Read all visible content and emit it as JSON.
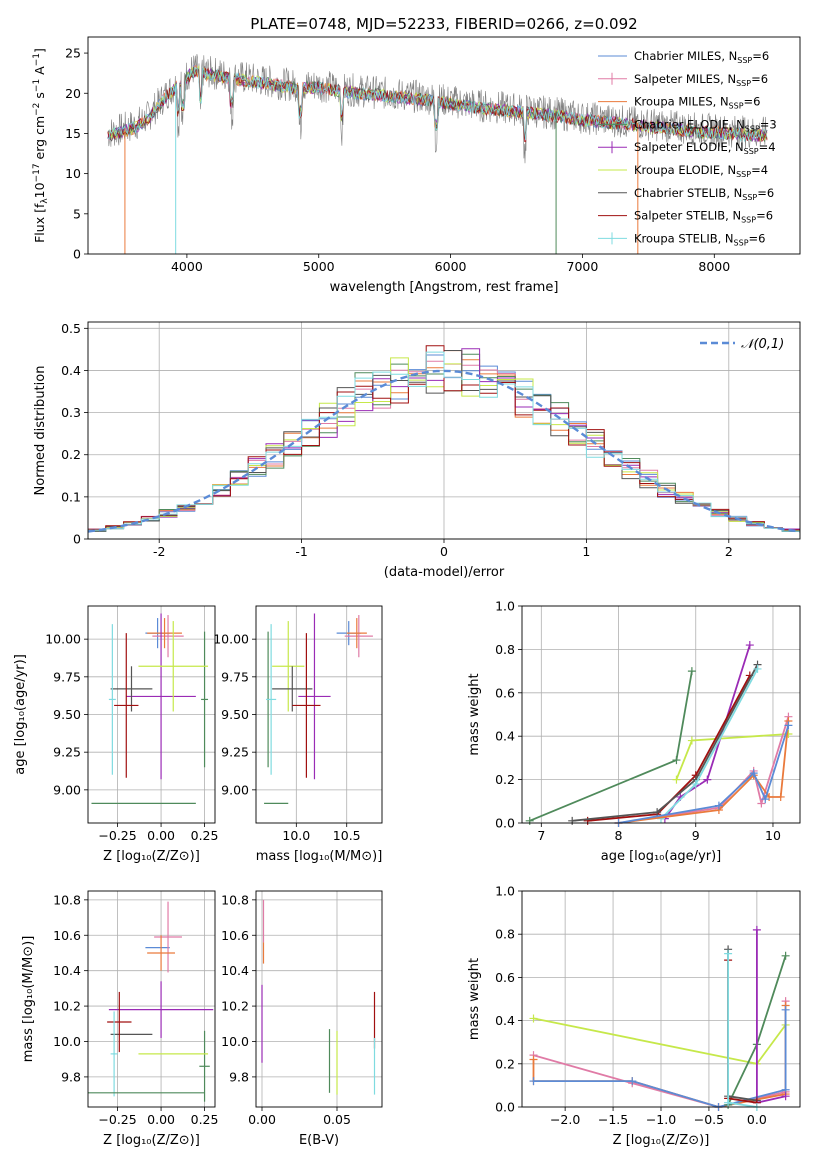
{
  "figure_title": "PLATE=0748, MJD=52233, FIBERID=0266, z=0.092",
  "series_colors": [
    "#5b8bd6",
    "#e07ba6",
    "#ea7a3c",
    "#4f8a5b",
    "#9a2bb5",
    "#c6e84a",
    "#555555",
    "#a01010",
    "#7fdbe0"
  ],
  "chart_data": [
    {
      "id": "spectrum",
      "type": "line",
      "xlabel": "wavelength [Angstrom, rest frame]",
      "ylabel": "Flux [f$_\\lambda$10$^{-17}$ erg cm$^{-2}$ s$^{-1}$ A$^{-1}$]",
      "xlim": [
        3250,
        8650
      ],
      "ylim": [
        0,
        27
      ],
      "xticks": [
        4000,
        5000,
        6000,
        7000,
        8000
      ],
      "yticks": [
        0,
        5,
        10,
        15,
        20,
        25
      ],
      "legend_position": "upper-right",
      "legend": [
        {
          "base": "Chabrier MILES, N",
          "sub": "SSP",
          "tail": "=6"
        },
        {
          "base": "Salpeter MILES, N",
          "sub": "SSP",
          "tail": "=6"
        },
        {
          "base": "Kroupa MILES, N",
          "sub": "SSP",
          "tail": "=6"
        },
        {
          "base": "Chabrier ELODIE, N",
          "sub": "SSP",
          "tail": "=3"
        },
        {
          "base": "Salpeter ELODIE, N",
          "sub": "SSP",
          "tail": "=4"
        },
        {
          "base": "Kroupa ELODIE, N",
          "sub": "SSP",
          "tail": "=4"
        },
        {
          "base": "Chabrier STELIB, N",
          "sub": "SSP",
          "tail": "=6"
        },
        {
          "base": "Salpeter STELIB, N",
          "sub": "SSP",
          "tail": "=6"
        },
        {
          "base": "Kroupa STELIB, N",
          "sub": "SSP",
          "tail": "=6"
        }
      ],
      "continuum": [
        [
          3400,
          15
        ],
        [
          3600,
          16
        ],
        [
          3700,
          17
        ],
        [
          3850,
          20
        ],
        [
          3950,
          21.5
        ],
        [
          4050,
          23
        ],
        [
          4200,
          22.5
        ],
        [
          4400,
          22
        ],
        [
          4600,
          21.5
        ],
        [
          4800,
          21
        ],
        [
          5000,
          21
        ],
        [
          5200,
          20.5
        ],
        [
          5500,
          20
        ],
        [
          5800,
          19.5
        ],
        [
          6000,
          19
        ],
        [
          6200,
          18.5
        ],
        [
          6500,
          18
        ],
        [
          6800,
          17.5
        ],
        [
          7000,
          17
        ],
        [
          7300,
          16.5
        ],
        [
          7600,
          16
        ],
        [
          7900,
          15.5
        ],
        [
          8200,
          15.2
        ],
        [
          8400,
          15
        ]
      ]
    },
    {
      "id": "residuals",
      "type": "histogram",
      "xlabel": "(data-model)/error",
      "ylabel": "Normed distribution",
      "xlim": [
        -2.5,
        2.5
      ],
      "ylim": [
        0,
        0.515
      ],
      "xticks": [
        -2,
        -1,
        0,
        1,
        2
      ],
      "yticks": [
        0.0,
        0.1,
        0.2,
        0.3,
        0.4,
        0.5
      ],
      "grid": true,
      "legend_label": "𝒩(0,1)",
      "legend_position": "upper-right",
      "bins": 40
    },
    {
      "id": "age_vs_Z",
      "type": "errorbar",
      "xlabel": "Z [log₁₀(Z/Z⊙)]",
      "ylabel": "age  [log₁₀(age/yr)]",
      "xlim": [
        -0.42,
        0.31
      ],
      "ylim": [
        8.78,
        10.22
      ],
      "xticks": [
        -0.25,
        0.0,
        0.25
      ],
      "yticks": [
        9.0,
        9.25,
        9.5,
        9.75,
        10.0
      ],
      "xticklabels": [
        "−0.25",
        "0.00",
        "0.25"
      ],
      "yticklabels": [
        "9.00",
        "9.25",
        "9.50",
        "9.75",
        "10.00"
      ],
      "grid": true,
      "points": [
        {
          "s": 0,
          "x": -0.02,
          "xe": 0.07,
          "y": 10.04,
          "ye": 0.1
        },
        {
          "s": 1,
          "x": 0.04,
          "xe": 0.09,
          "y": 10.02,
          "ye": 0.14
        },
        {
          "s": 2,
          "x": 0.02,
          "xe": 0.1,
          "y": 10.04,
          "ye": 0.1
        },
        {
          "s": 3,
          "x": 0.25,
          "xe": 0.02,
          "y": 9.6,
          "ye": 0.45
        },
        {
          "s": 4,
          "x": 0.0,
          "xe": 0.2,
          "y": 9.62,
          "ye": 0.55
        },
        {
          "s": 5,
          "x": 0.07,
          "xe": 0.2,
          "y": 9.82,
          "ye": 0.3
        },
        {
          "s": 6,
          "x": -0.17,
          "xe": 0.12,
          "y": 9.67,
          "ye": 0.15
        },
        {
          "s": 7,
          "x": -0.2,
          "xe": 0.07,
          "y": 9.56,
          "ye": 0.48
        },
        {
          "s": 8,
          "x": -0.28,
          "xe": 0.02,
          "y": 9.6,
          "ye": 0.5
        },
        {
          "s": 3,
          "x": -0.1,
          "xe": 0.3,
          "y": 8.91,
          "ye": 0.0
        }
      ]
    },
    {
      "id": "age_vs_mass",
      "type": "errorbar",
      "xlabel": "mass [log₁₀(M/M⊙)]",
      "ylabel": "",
      "xlim": [
        9.6,
        10.85
      ],
      "ylim": [
        8.78,
        10.22
      ],
      "xticks": [
        10.0,
        10.5
      ],
      "yticks": [
        9.0,
        9.25,
        9.5,
        9.75,
        10.0
      ],
      "xticklabels": [
        "10.0",
        "10.5"
      ],
      "yticklabels": [
        "9.00",
        "9.25",
        "9.50",
        "9.75",
        "10.00"
      ],
      "grid": true,
      "points": [
        {
          "s": 0,
          "x": 10.52,
          "xe": 0.12,
          "y": 10.04,
          "ye": 0.08
        },
        {
          "s": 1,
          "x": 10.62,
          "xe": 0.14,
          "y": 10.02,
          "ye": 0.14
        },
        {
          "s": 2,
          "x": 10.6,
          "xe": 0.1,
          "y": 10.04,
          "ye": 0.1
        },
        {
          "s": 3,
          "x": 9.72,
          "xe": 0.01,
          "y": 9.6,
          "ye": 0.45
        },
        {
          "s": 4,
          "x": 10.18,
          "xe": 0.16,
          "y": 9.62,
          "ye": 0.55
        },
        {
          "s": 5,
          "x": 9.92,
          "xe": 0.16,
          "y": 9.82,
          "ye": 0.3
        },
        {
          "s": 6,
          "x": 9.96,
          "xe": 0.2,
          "y": 9.67,
          "ye": 0.15
        },
        {
          "s": 7,
          "x": 10.1,
          "xe": 0.14,
          "y": 9.56,
          "ye": 0.48
        },
        {
          "s": 8,
          "x": 9.75,
          "xe": 0.05,
          "y": 9.6,
          "ye": 0.5
        },
        {
          "s": 3,
          "x": 9.8,
          "xe": 0.12,
          "y": 8.91,
          "ye": 0.0
        }
      ]
    },
    {
      "id": "weight_vs_age",
      "type": "line",
      "xlabel": "age  [log₁₀(age/yr)]",
      "ylabel": "mass weight",
      "xlim": [
        6.75,
        10.35
      ],
      "ylim": [
        0,
        1
      ],
      "xticks": [
        7,
        8,
        9,
        10
      ],
      "yticks": [
        0.0,
        0.2,
        0.4,
        0.6,
        0.8,
        1.0
      ],
      "xticklabels": [
        "7",
        "8",
        "9",
        "10"
      ],
      "yticklabels": [
        "0.0",
        "0.2",
        "0.4",
        "0.6",
        "0.8",
        "1.0"
      ],
      "grid": true,
      "series": [
        {
          "s": 3,
          "x": [
            6.85,
            8.75,
            8.95
          ],
          "y": [
            0.01,
            0.29,
            0.7
          ]
        },
        {
          "s": 5,
          "x": [
            8.75,
            8.95,
            10.2
          ],
          "y": [
            0.2,
            0.38,
            0.41
          ]
        },
        {
          "s": 4,
          "x": [
            8.6,
            8.8,
            9.15,
            9.7
          ],
          "y": [
            0.02,
            0.12,
            0.2,
            0.82
          ]
        },
        {
          "s": 7,
          "x": [
            7.6,
            8.5,
            9.0,
            9.7
          ],
          "y": [
            0.01,
            0.04,
            0.22,
            0.68
          ]
        },
        {
          "s": 6,
          "x": [
            7.4,
            8.5,
            9.0,
            9.8
          ],
          "y": [
            0.01,
            0.05,
            0.2,
            0.73
          ]
        },
        {
          "s": 8,
          "x": [
            8.55,
            9.0,
            9.8
          ],
          "y": [
            0.02,
            0.18,
            0.71
          ]
        },
        {
          "s": 1,
          "x": [
            8.0,
            9.3,
            9.75,
            9.85,
            10.2
          ],
          "y": [
            0.0,
            0.07,
            0.24,
            0.09,
            0.49
          ]
        },
        {
          "s": 2,
          "x": [
            8.0,
            9.3,
            9.75,
            9.95,
            10.1,
            10.2
          ],
          "y": [
            0.0,
            0.06,
            0.22,
            0.12,
            0.12,
            0.47
          ]
        },
        {
          "s": 0,
          "x": [
            8.0,
            9.3,
            9.75,
            9.9,
            10.2
          ],
          "y": [
            0.0,
            0.08,
            0.23,
            0.11,
            0.45
          ]
        }
      ]
    },
    {
      "id": "mass_vs_Z",
      "type": "errorbar",
      "xlabel": "Z [log₁₀(Z/Z⊙)]",
      "ylabel": "mass [log₁₀(M/M⊙)]",
      "xlim": [
        -0.42,
        0.31
      ],
      "ylim": [
        9.63,
        10.85
      ],
      "xticks": [
        -0.25,
        0.0,
        0.25
      ],
      "yticks": [
        9.8,
        10.0,
        10.2,
        10.4,
        10.6,
        10.8
      ],
      "xticklabels": [
        "−0.25",
        "0.00",
        "0.25"
      ],
      "yticklabels": [
        "9.8",
        "10.0",
        "10.2",
        "10.4",
        "10.6",
        "10.8"
      ],
      "grid": true,
      "points": [
        {
          "s": 0,
          "x": -0.02,
          "xe": 0.07,
          "y": 10.53,
          "ye": 0.0
        },
        {
          "s": 1,
          "x": 0.04,
          "xe": 0.08,
          "y": 10.59,
          "ye": 0.2
        },
        {
          "s": 2,
          "x": 0.0,
          "xe": 0.08,
          "y": 10.5,
          "ye": 0.1
        },
        {
          "s": 3,
          "x": 0.25,
          "xe": 0.03,
          "y": 9.86,
          "ye": 0.2
        },
        {
          "s": 4,
          "x": 0.0,
          "xe": 0.3,
          "y": 10.18,
          "ye": 0.16
        },
        {
          "s": 5,
          "x": 0.07,
          "xe": 0.2,
          "y": 9.93,
          "ye": 0.0
        },
        {
          "s": 6,
          "x": -0.17,
          "xe": 0.12,
          "y": 10.04,
          "ye": 0.0
        },
        {
          "s": 7,
          "x": -0.24,
          "xe": 0.07,
          "y": 10.11,
          "ye": 0.17
        },
        {
          "s": 8,
          "x": -0.27,
          "xe": 0.02,
          "y": 9.93,
          "ye": 0.24
        },
        {
          "s": 3,
          "x": -0.1,
          "xe": 0.35,
          "y": 9.71,
          "ye": 0.0
        }
      ]
    },
    {
      "id": "mass_vs_ebv",
      "type": "errorbar",
      "xlabel": "E(B-V)",
      "ylabel": "",
      "xlim": [
        -0.004,
        0.08
      ],
      "ylim": [
        9.63,
        10.85
      ],
      "xticks": [
        0.0,
        0.05
      ],
      "yticks": [
        9.8,
        10.0,
        10.2,
        10.4,
        10.6,
        10.8
      ],
      "xticklabels": [
        "0.00",
        "0.05"
      ],
      "yticklabels": [
        "9.8",
        "10.0",
        "10.2",
        "10.4",
        "10.6",
        "10.8"
      ],
      "grid": true,
      "points": [
        {
          "s": 1,
          "x": 0.001,
          "xe": 0,
          "y": 10.68,
          "ye": 0.12
        },
        {
          "s": 2,
          "x": 0.001,
          "xe": 0,
          "y": 10.5,
          "ye": 0.06
        },
        {
          "s": 4,
          "x": 0.0,
          "xe": 0,
          "y": 10.1,
          "ye": 0.22
        },
        {
          "s": 3,
          "x": 0.045,
          "xe": 0,
          "y": 9.89,
          "ye": 0.18
        },
        {
          "s": 5,
          "x": 0.05,
          "xe": 0,
          "y": 9.88,
          "ye": 0.18
        },
        {
          "s": 7,
          "x": 0.075,
          "xe": 0,
          "y": 10.12,
          "ye": 0.16
        },
        {
          "s": 8,
          "x": 0.075,
          "xe": 0,
          "y": 9.86,
          "ye": 0.16
        }
      ]
    },
    {
      "id": "weight_vs_Z",
      "type": "line",
      "xlabel": "Z [log₁₀(Z/Z⊙)]",
      "ylabel": "mass weight",
      "xlim": [
        -2.45,
        0.45
      ],
      "ylim": [
        0,
        1
      ],
      "xticks": [
        -2.0,
        -1.5,
        -1.0,
        -0.5,
        0.0
      ],
      "yticks": [
        0.0,
        0.2,
        0.4,
        0.6,
        0.8,
        1.0
      ],
      "xticklabels": [
        "−2.0",
        "−1.5",
        "−1.0",
        "−0.5",
        "0.0"
      ],
      "yticklabels": [
        "0.0",
        "0.2",
        "0.4",
        "0.6",
        "0.8",
        "1.0"
      ],
      "grid": true,
      "series": [
        {
          "s": 5,
          "x": [
            -2.33,
            0.0,
            0.3
          ],
          "y": [
            0.41,
            0.2,
            0.38
          ]
        },
        {
          "s": 1,
          "x": [
            -2.33,
            -1.3,
            -0.4,
            0.3,
            0.3
          ],
          "y": [
            0.24,
            0.11,
            0.0,
            0.07,
            0.49
          ]
        },
        {
          "s": 2,
          "x": [
            -2.33,
            -2.33,
            -1.3,
            -0.4,
            0.3,
            0.3
          ],
          "y": [
            0.22,
            0.12,
            0.12,
            0.0,
            0.06,
            0.47
          ]
        },
        {
          "s": 0,
          "x": [
            -2.33,
            -1.3,
            -0.4,
            0.3,
            0.3
          ],
          "y": [
            0.12,
            0.12,
            0.0,
            0.08,
            0.45
          ]
        },
        {
          "s": 3,
          "x": [
            -0.3,
            0.0,
            0.3
          ],
          "y": [
            0.01,
            0.29,
            0.7
          ]
        },
        {
          "s": 4,
          "x": [
            0.0,
            0.0,
            0.3
          ],
          "y": [
            0.82,
            0.02,
            0.05
          ]
        },
        {
          "s": 6,
          "x": [
            -0.3,
            -0.3,
            0.0
          ],
          "y": [
            0.73,
            0.05,
            0.03
          ]
        },
        {
          "s": 7,
          "x": [
            -0.3,
            -0.3,
            0.0
          ],
          "y": [
            0.68,
            0.04,
            0.02
          ]
        },
        {
          "s": 8,
          "x": [
            -0.3,
            -0.3,
            0.0
          ],
          "y": [
            0.71,
            0.02,
            0.0
          ]
        }
      ]
    }
  ]
}
